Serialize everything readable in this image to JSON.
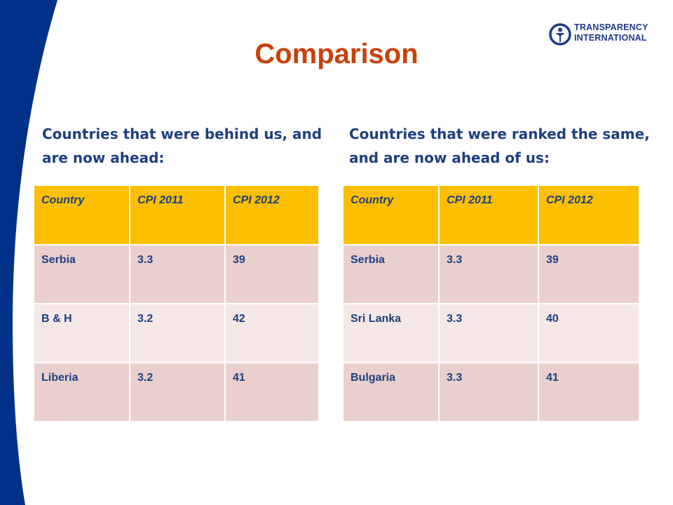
{
  "colors": {
    "band": "#003087",
    "title": "#c8410b",
    "heading": "#1d3f80",
    "header_fill": "#fbbf00",
    "row_dark": "#ead0cd",
    "row_light": "#f5e8e7"
  },
  "logo": {
    "line1": "TRANSPARENCY",
    "line2": "INTERNATIONAL",
    "icon": "globe-figure-icon"
  },
  "title": "Comparison",
  "left": {
    "heading": "Countries that were behind us, and are now ahead:",
    "columns": [
      "Country",
      "CPI 2011",
      "CPI 2012"
    ],
    "rows": [
      [
        "Serbia",
        "3.3",
        "39"
      ],
      [
        "B & H",
        "3.2",
        "42"
      ],
      [
        "Liberia",
        "3.2",
        "41"
      ]
    ]
  },
  "right": {
    "heading": "Countries that were ranked the same, and are now ahead of us:",
    "columns": [
      "Country",
      "CPI 2011",
      "CPI 2012"
    ],
    "rows": [
      [
        "Serbia",
        "3.3",
        "39"
      ],
      [
        "Sri Lanka",
        "3.3",
        "40"
      ],
      [
        "Bulgaria",
        "3.3",
        "41"
      ]
    ]
  }
}
